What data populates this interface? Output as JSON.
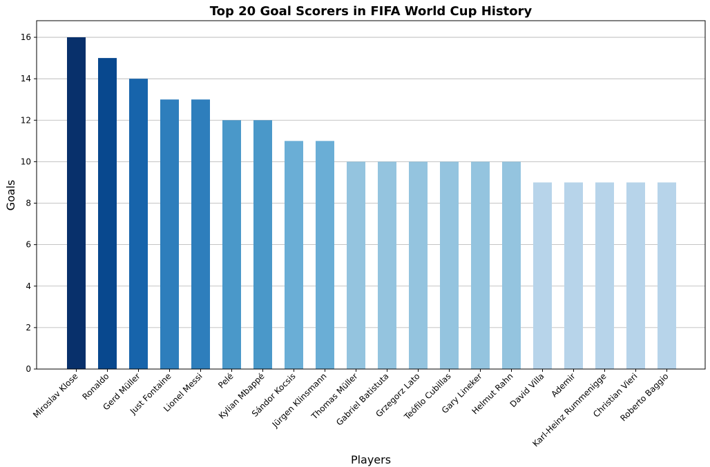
{
  "chart_data": {
    "type": "bar",
    "title": "Top 20 Goal Scorers in FIFA World Cup History",
    "xlabel": "Players",
    "ylabel": "Goals",
    "ylim": [
      0,
      16.8
    ],
    "yticks": [
      0,
      2,
      4,
      6,
      8,
      10,
      12,
      14,
      16
    ],
    "grid": "y",
    "categories": [
      "Miroslav Klose",
      "Ronaldo",
      "Gerd Müller",
      "Just Fontaine",
      "Lionel Messi",
      "Pelé",
      "Kylian Mbappé",
      "Sándor Kocsis",
      "Jürgen Klinsmann",
      "Thomas Müller",
      "Gabriel Batistuta",
      "Grzegorz Lato",
      "Teófilo Cubillas",
      "Gary Lineker",
      "Helmut Rahn",
      "David Villa",
      "Ademir",
      "Karl-Heinz Rummenigge",
      "Christian Vieri",
      "Roberto Baggio"
    ],
    "values": [
      16,
      15,
      14,
      13,
      13,
      12,
      12,
      11,
      11,
      10,
      10,
      10,
      10,
      10,
      10,
      9,
      9,
      9,
      9,
      9
    ],
    "colors": [
      "#08306b",
      "#08488e",
      "#1764ab",
      "#2e7ebc",
      "#2e7ebc",
      "#4a98c9",
      "#4a98c9",
      "#6aaed6",
      "#6aaed6",
      "#94c4df",
      "#94c4df",
      "#94c4df",
      "#94c4df",
      "#94c4df",
      "#94c4df",
      "#b7d4ea",
      "#b7d4ea",
      "#b7d4ea",
      "#b7d4ea",
      "#b7d4ea"
    ]
  }
}
